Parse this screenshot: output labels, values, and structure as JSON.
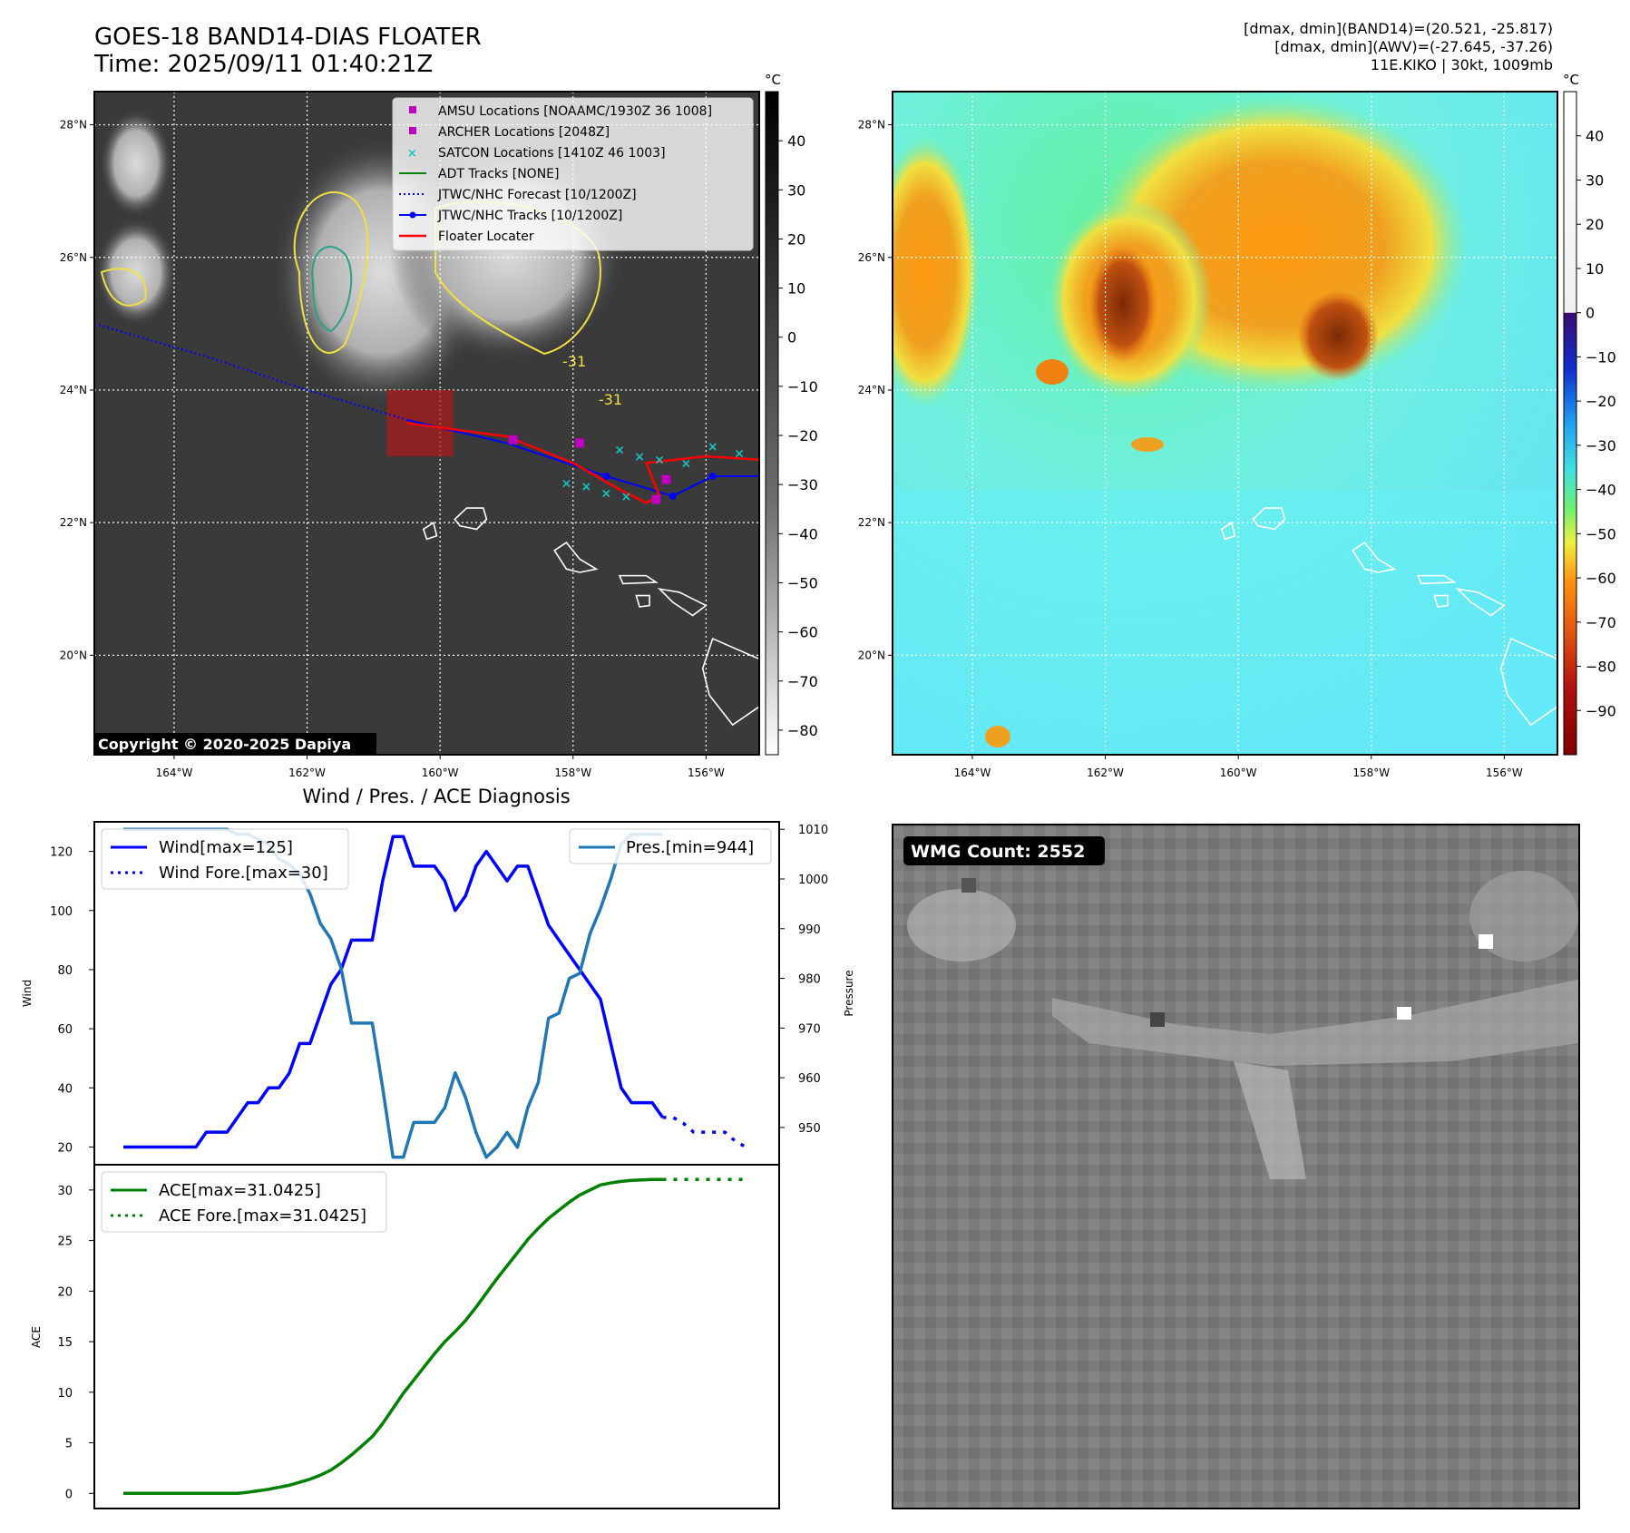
{
  "header": {
    "title_line1": "GOES-18 BAND14-DIAS FLOATER",
    "title_line2": "Time: 2025/09/11 01:40:21Z",
    "info_line1": "[dmax, dmin](BAND14)=(20.521, -25.817)",
    "info_line2": "[dmax, dmin](AWV)=(-27.645, -37.26)",
    "info_line3": "11E.KIKO | 30kt, 1009mb"
  },
  "map_common": {
    "lat_ticks": [
      "28°N",
      "26°N",
      "24°N",
      "22°N",
      "20°N"
    ],
    "lat_values": [
      28,
      26,
      24,
      22,
      20
    ],
    "lon_ticks": [
      "164°W",
      "162°W",
      "160°W",
      "158°W",
      "156°W"
    ],
    "lon_values": [
      -164,
      -162,
      -160,
      -158,
      -156
    ],
    "extent": {
      "lon": [
        -165.2,
        -155.2
      ],
      "lat": [
        18.5,
        28.5
      ]
    }
  },
  "ir_panel": {
    "colorbar_unit": "°C",
    "colorbar_ticks": [
      "40",
      "30",
      "20",
      "10",
      "0",
      "−10",
      "−20",
      "−30",
      "−40",
      "−50",
      "−60",
      "−70",
      "−80"
    ],
    "colorbar_values": [
      40,
      30,
      20,
      10,
      0,
      -10,
      -20,
      -30,
      -40,
      -50,
      -60,
      -70,
      -80
    ],
    "colorbar_range": [
      -85,
      50
    ],
    "copyright": "Copyright © 2020-2025 Dapiya",
    "contour_labels": [
      "-31",
      "-31"
    ],
    "legend": [
      {
        "label": "AMSU Locations [NOAAMC/1930Z 36 1008]",
        "kind": "square",
        "color": "#c000c0"
      },
      {
        "label": "ARCHER Locations [2048Z]",
        "kind": "square",
        "color": "#c000c0"
      },
      {
        "label": "SATCON Locations [1410Z 46 1003]",
        "kind": "x",
        "color": "#19c0c0"
      },
      {
        "label": "ADT Tracks [NONE]",
        "kind": "line",
        "color": "#008000"
      },
      {
        "label": "JTWC/NHC Forecast [10/1200Z]",
        "kind": "dotted",
        "color": "#0000ff"
      },
      {
        "label": "JTWC/NHC Tracks [10/1200Z]",
        "kind": "line-dot",
        "color": "#0000ff"
      },
      {
        "label": "Floater Locater",
        "kind": "line",
        "color": "#ff0000"
      }
    ],
    "forecast_track": [
      [
        -165.2,
        25.0
      ],
      [
        -163.5,
        24.5
      ],
      [
        -162.0,
        24.0
      ],
      [
        -160.5,
        23.55
      ]
    ],
    "nhc_track": [
      [
        -160.5,
        23.55
      ],
      [
        -159.0,
        23.2
      ],
      [
        -157.5,
        22.7
      ],
      [
        -156.5,
        22.4
      ],
      [
        -155.9,
        22.7
      ],
      [
        -155.2,
        22.7
      ]
    ],
    "nhc_points": [
      [
        -157.5,
        22.7
      ],
      [
        -156.5,
        22.4
      ],
      [
        -155.9,
        22.7
      ]
    ],
    "floater_track": [
      [
        -160.5,
        23.5
      ],
      [
        -159.0,
        23.3
      ],
      [
        -158.0,
        22.9
      ],
      [
        -157.3,
        22.5
      ],
      [
        -156.9,
        22.3
      ],
      [
        -156.7,
        22.4
      ],
      [
        -156.9,
        22.9
      ],
      [
        -156.0,
        23.0
      ],
      [
        -155.2,
        22.95
      ]
    ],
    "amsu_points": [
      [
        -158.9,
        23.25
      ],
      [
        -157.9,
        23.2
      ],
      [
        -156.6,
        22.65
      ],
      [
        -156.75,
        22.35
      ]
    ],
    "satcon_points": [
      [
        -158.1,
        22.6
      ],
      [
        -157.8,
        22.55
      ],
      [
        -157.5,
        22.45
      ],
      [
        -157.2,
        22.4
      ],
      [
        -157.3,
        23.1
      ],
      [
        -157.0,
        23.0
      ],
      [
        -156.7,
        22.95
      ],
      [
        -156.3,
        22.9
      ],
      [
        -155.9,
        23.15
      ],
      [
        -155.5,
        23.05
      ]
    ],
    "floater_box": {
      "lon": [
        -160.8,
        -159.8
      ],
      "lat": [
        23.0,
        24.0
      ]
    }
  },
  "awv_panel": {
    "colorbar_unit": "°C",
    "colorbar_ticks": [
      "40",
      "30",
      "20",
      "10",
      "0",
      "−10",
      "−20",
      "−30",
      "−40",
      "−50",
      "−60",
      "−70",
      "−80",
      "−90"
    ],
    "colorbar_values": [
      40,
      30,
      20,
      10,
      0,
      -10,
      -20,
      -30,
      -40,
      -50,
      -60,
      -70,
      -80,
      -90
    ],
    "colorbar_range": [
      -100,
      50
    ]
  },
  "wmg_panel": {
    "badge": "WMG Count: 2552"
  },
  "diagnosis": {
    "title": "Wind / Pres. / ACE Diagnosis"
  },
  "chart_data": [
    {
      "type": "line",
      "title": "Wind / Pres. / ACE Diagnosis",
      "ylabel": "Wind",
      "ylabel_right": "Pressure",
      "ylim": [
        14,
        130
      ],
      "ylim_right": [
        942.5,
        1011.5
      ],
      "y_ticks": [
        20,
        40,
        60,
        80,
        100,
        120
      ],
      "y_ticks_right": [
        950,
        960,
        970,
        980,
        990,
        1000,
        1010
      ],
      "series": [
        {
          "name": "Wind[max=125]",
          "color": "#0000ff",
          "style": "solid",
          "axis": "left",
          "values": [
            20,
            20,
            20,
            20,
            20,
            20,
            20,
            20,
            25,
            25,
            25,
            30,
            35,
            35,
            40,
            40,
            45,
            55,
            55,
            65,
            75,
            80,
            90,
            90,
            90,
            110,
            125,
            125,
            115,
            115,
            115,
            110,
            100,
            105,
            115,
            120,
            115,
            110,
            115,
            115,
            105,
            95,
            90,
            85,
            80,
            75,
            70,
            55,
            40,
            35,
            35,
            35,
            30
          ]
        },
        {
          "name": "Wind Fore.[max=30]",
          "color": "#0000ff",
          "style": "dotted",
          "axis": "left",
          "values": [
            30,
            30,
            28,
            25,
            25,
            25,
            25,
            22,
            20
          ],
          "x_offset": 52
        },
        {
          "name": "Pres.[min=944]",
          "color": "#1f77b4",
          "style": "solid",
          "axis": "right",
          "values": [
            1010,
            1010,
            1010,
            1010,
            1010,
            1010,
            1010,
            1010,
            1010,
            1010,
            1010,
            1009,
            1009,
            1008,
            1007,
            1004,
            1003,
            1001,
            997,
            991,
            988,
            982,
            971,
            971,
            971,
            958,
            944,
            944,
            951,
            951,
            951,
            954,
            961,
            956,
            949,
            944,
            946,
            949,
            946,
            954,
            959,
            972,
            973,
            980,
            981,
            989,
            994,
            1000,
            1007,
            1009,
            1009,
            1009,
            1009
          ]
        }
      ]
    },
    {
      "type": "line",
      "ylabel": "ACE",
      "ylim": [
        -1.5,
        32.5
      ],
      "y_ticks": [
        0,
        5,
        10,
        15,
        20,
        25,
        30
      ],
      "series": [
        {
          "name": "ACE[max=31.0425]",
          "color": "#008000",
          "style": "solid",
          "values": [
            0,
            0,
            0,
            0,
            0,
            0,
            0,
            0,
            0,
            0,
            0,
            0,
            0.1,
            0.25,
            0.4,
            0.6,
            0.8,
            1.1,
            1.4,
            1.8,
            2.3,
            3.0,
            3.8,
            4.7,
            5.6,
            6.9,
            8.4,
            9.9,
            11.2,
            12.5,
            13.8,
            15.0,
            16.0,
            17.1,
            18.4,
            19.8,
            21.2,
            22.5,
            23.8,
            25.1,
            26.2,
            27.2,
            28.0,
            28.8,
            29.5,
            30.0,
            30.5,
            30.7,
            30.85,
            30.95,
            31.0,
            31.04,
            31.0425
          ]
        },
        {
          "name": "ACE Fore.[max=31.0425]",
          "color": "#008000",
          "style": "dotted",
          "values": [
            31.0425,
            31.0425,
            31.0425,
            31.0425,
            31.0425,
            31.0425,
            31.0425,
            31.0425,
            31.0425
          ],
          "x_offset": 52
        }
      ]
    }
  ]
}
